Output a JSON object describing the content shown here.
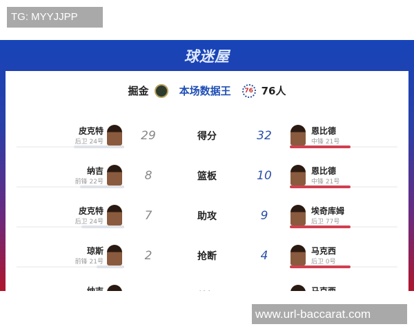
{
  "tg_label": "TG: MYYJJPP",
  "watermark": "www.url-baccarat.com",
  "logo": "球迷屋",
  "header": {
    "home": "掘金",
    "title": "本场数据王",
    "away": "76人",
    "away_logo_text": "76"
  },
  "colors": {
    "accent_blue": "#1f4fb5",
    "bar_red": "#d04050"
  },
  "rows": [
    {
      "category": "得分",
      "left": {
        "name": "皮克特",
        "pos": "后卫 24号",
        "value": "29"
      },
      "right": {
        "name": "恩比德",
        "pos": "中锋 21号",
        "value": "32"
      }
    },
    {
      "category": "篮板",
      "left": {
        "name": "纳吉",
        "pos": "前锋 22号",
        "value": "8"
      },
      "right": {
        "name": "恩比德",
        "pos": "中锋 21号",
        "value": "10"
      }
    },
    {
      "category": "助攻",
      "left": {
        "name": "皮克特",
        "pos": "后卫 24号",
        "value": "7"
      },
      "right": {
        "name": "埃奇库姆",
        "pos": "后卫 77号",
        "value": "9"
      }
    },
    {
      "category": "抢断",
      "left": {
        "name": "琼斯",
        "pos": "前锋 21号",
        "value": "2"
      },
      "right": {
        "name": "马克西",
        "pos": "后卫 0号",
        "value": "4"
      }
    },
    {
      "category": "盖帽",
      "left": {
        "name": "纳吉"
      },
      "right": {
        "name": "马克西"
      }
    }
  ]
}
